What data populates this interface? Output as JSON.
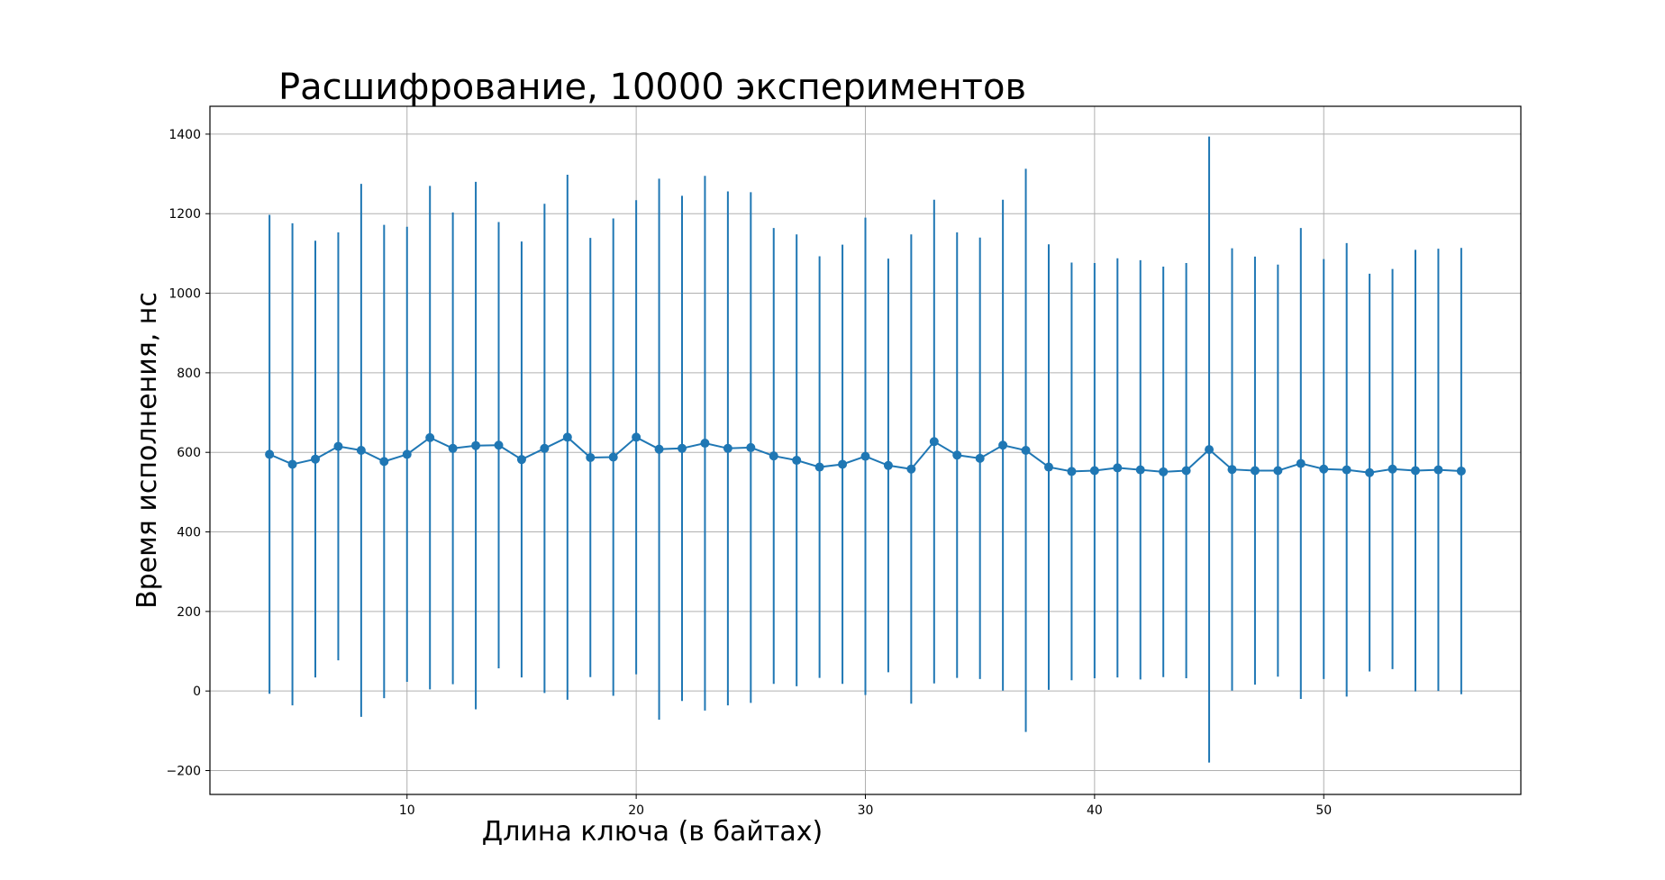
{
  "chart_data": {
    "type": "line",
    "title": "Расшифрование, 10000 экспериментов",
    "xlabel": "Длина ключа (в байтах)",
    "ylabel": "Время исполнения, нс",
    "xlim": [
      1.4,
      58.6
    ],
    "ylim": [
      -260,
      1470
    ],
    "xticks": [
      10,
      20,
      30,
      40,
      50
    ],
    "yticks": [
      -200,
      0,
      200,
      400,
      600,
      800,
      1000,
      1200,
      1400
    ],
    "ytick_labels": [
      "−200",
      "0",
      "200",
      "400",
      "600",
      "800",
      "1000",
      "1200",
      "1400"
    ],
    "grid": true,
    "color": "#1f77b4",
    "series": [
      {
        "x": [
          4,
          5,
          6,
          7,
          8,
          9,
          10,
          11,
          12,
          13,
          14,
          15,
          16,
          17,
          18,
          19,
          20,
          21,
          22,
          23,
          24,
          25,
          26,
          27,
          28,
          29,
          30,
          31,
          32,
          33,
          34,
          35,
          36,
          37,
          38,
          39,
          40,
          41,
          42,
          43,
          44,
          45,
          46,
          47,
          48,
          49,
          50,
          51,
          52,
          53,
          54,
          55,
          56
        ],
        "y": [
          595,
          570,
          583,
          615,
          605,
          577,
          595,
          637,
          610,
          617,
          618,
          582,
          610,
          638,
          587,
          588,
          638,
          608,
          610,
          623,
          610,
          612,
          591,
          580,
          563,
          570,
          590,
          567,
          558,
          627,
          593,
          585,
          618,
          605,
          563,
          552,
          554,
          561,
          556,
          551,
          554,
          607,
          557,
          554,
          554,
          572,
          558,
          556,
          549,
          558,
          554,
          556,
          553
        ],
        "error": [
          602,
          606,
          549,
          538,
          670,
          595,
          572,
          633,
          593,
          663,
          561,
          548,
          615,
          660,
          552,
          600,
          596,
          680,
          635,
          672,
          646,
          642,
          573,
          568,
          530,
          552,
          600,
          520,
          590,
          608,
          560,
          555,
          617,
          708,
          560,
          525,
          522,
          527,
          527,
          516,
          522,
          787,
          556,
          538,
          518,
          592,
          528,
          570,
          500,
          503,
          555,
          556,
          561
        ]
      }
    ]
  }
}
